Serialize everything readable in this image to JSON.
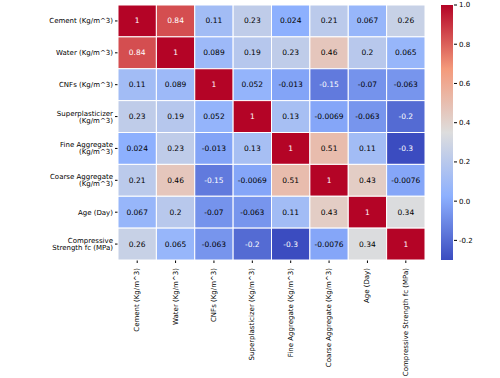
{
  "chart_data": {
    "type": "heatmap",
    "color": "coolwarm",
    "data_labels": true,
    "x_categories": [
      "Cement (Kg/m^3)",
      "Water (Kg/m^3)",
      "CNFs (Kg/m^3)",
      "Superplasticizer (Kg/m^3)",
      "Fine Aggregate (Kg/m^3)",
      "Coarse Aggregate (Kg/m^3)",
      "Age (Day)",
      "Compressive Strength fc (MPa)"
    ],
    "y_categories": [
      "Cement (Kg/m^3)",
      "Water (Kg/m^3)",
      "CNFs (Kg/m^3)",
      "Superplasticizer (Kg/m^3)",
      "Fine Aggregate (Kg/m^3)",
      "Coarse Aggregate (Kg/m^3)",
      "Age (Day)",
      "Compressive Strength fc (MPa)"
    ],
    "cells": [
      [
        1,
        0.84,
        0.11,
        0.23,
        0.024,
        0.21,
        0.067,
        0.26
      ],
      [
        0.84,
        1,
        0.089,
        0.19,
        0.23,
        0.46,
        0.2,
        0.065
      ],
      [
        0.11,
        0.089,
        1,
        0.052,
        -0.013,
        -0.15,
        -0.07,
        -0.063
      ],
      [
        0.23,
        0.19,
        0.052,
        1,
        0.13,
        -0.0069,
        -0.063,
        -0.2
      ],
      [
        0.024,
        0.23,
        -0.013,
        0.13,
        1,
        0.51,
        0.11,
        -0.3
      ],
      [
        0.21,
        0.46,
        -0.15,
        -0.0069,
        0.51,
        1,
        0.43,
        -0.0076
      ],
      [
        0.067,
        0.2,
        -0.07,
        -0.063,
        0.11,
        0.43,
        1,
        0.34
      ],
      [
        0.26,
        0.065,
        -0.063,
        -0.2,
        -0.3,
        -0.0076,
        0.34,
        1
      ]
    ],
    "colorbar": {
      "range": [
        -0.3,
        1
      ],
      "ticks": [
        -0.2,
        {
          "value": 0,
          "label": "0.0"
        },
        0.2,
        0.4,
        0.6,
        0.8,
        {
          "value": 1,
          "label": "1.0"
        }
      ]
    }
  }
}
